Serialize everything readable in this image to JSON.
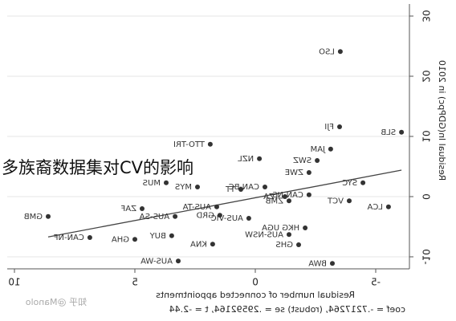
{
  "chart_data": {
    "type": "scatter",
    "x_label": "Residual number of connected appointments",
    "y_label": "Residual ln(GDPpc) in 2010",
    "note": "coef = -.7217264, (robust) se = .29592164, t = -2.44",
    "labels": [
      "LSO",
      "FJI",
      "SLB",
      "JAM",
      "TTO-TRI",
      "NZL",
      "SWZ",
      "ZWE",
      "SYC",
      "MUS",
      "MYS",
      "LCA",
      "VCT",
      "ZMB",
      "CAN-NS",
      "TZA",
      "ZAF",
      "GMB",
      "CAN-NF",
      "GHA",
      "BUY",
      "BWA",
      "AUS-WA",
      "HKG UGA",
      "AUS-NSW",
      "GHS",
      "KNA",
      "AUS-TA",
      "AUS-VIC",
      "AUS-SA",
      "GRD",
      "CAN-BC",
      "TT"
    ],
    "x": [
      -3.53,
      -3.5,
      -6.07,
      -3.13,
      1.87,
      -0.17,
      -2.57,
      -2.23,
      -4.47,
      3.7,
      2.4,
      -5.53,
      -3.9,
      -1.4,
      -2.23,
      -1.23,
      4.7,
      8.6,
      6.87,
      5.0,
      3.47,
      -3.2,
      3.2,
      -2.07,
      -1.4,
      -1.8,
      1.77,
      1.6,
      0.27,
      3.33,
      1.47,
      -0.4,
      0.6
    ],
    "y": [
      24.1,
      11.6,
      10.7,
      7.9,
      8.7,
      6.3,
      6.0,
      4.0,
      2.3,
      2.3,
      1.6,
      -1.7,
      -0.7,
      -0.7,
      0.3,
      0,
      -2,
      -3.3,
      -6.8,
      -7.1,
      -6.5,
      -11.1,
      -10.7,
      -5.2,
      -6.3,
      -8,
      -7.9,
      -1.7,
      -3.6,
      -3.3,
      -3.1,
      1.6,
      1.2
    ],
    "fit_line": {
      "x": [
        8.6,
        -6.07
      ],
      "y": [
        -6.7,
        4.4
      ]
    },
    "xlim": [
      -6.4,
      10.3
    ],
    "ylim": [
      -12,
      32
    ],
    "xticks": [
      10,
      5,
      0,
      -5
    ],
    "yticks": [
      -10,
      0,
      10,
      20,
      30
    ],
    "grid": true,
    "color": "#333333"
  },
  "overlay": {
    "caption": "多族裔数据集对CV的影响",
    "watermark": "知乎 @Manolo"
  }
}
